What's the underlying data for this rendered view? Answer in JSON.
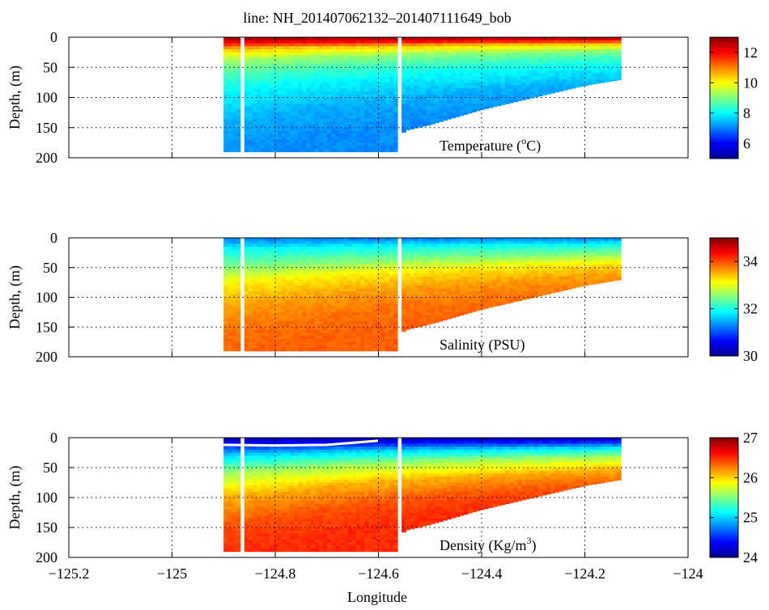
{
  "figure": {
    "title": "line: NH_201407062132–201407111649_bob",
    "xlabel": "Longitude",
    "xticks": [
      -125.2,
      -125,
      -124.8,
      -124.6,
      -124.4,
      -124.2,
      -124
    ],
    "xtick_labels": [
      "−125.2",
      "−125",
      "−124.8",
      "−124.6",
      "−124.4",
      "−124.2",
      "−124"
    ]
  },
  "chart_data": [
    {
      "type": "heatmap",
      "name": "temperature",
      "annotation": "Temperature (°C)",
      "annotation_base": "Temperature (",
      "annotation_sup": "o",
      "annotation_tail": "C)",
      "xlabel": "Longitude",
      "ylabel": "Depth, (m)",
      "xlim": [
        -125.2,
        -124
      ],
      "ylim": [
        0,
        200
      ],
      "yticks": [
        0,
        50,
        100,
        150,
        200
      ],
      "ytick_labels": [
        "0",
        "50",
        "100",
        "150",
        "200"
      ],
      "colorbar": {
        "range": [
          5,
          13
        ],
        "ticks": [
          6,
          8,
          10,
          12
        ],
        "tick_labels": [
          "6",
          "8",
          "10",
          "12"
        ]
      },
      "grid": true,
      "profile": [
        [
          0,
          12.8
        ],
        [
          10,
          12
        ],
        [
          20,
          10.5
        ],
        [
          40,
          9.2
        ],
        [
          60,
          8.6
        ],
        [
          90,
          8
        ],
        [
          140,
          7.4
        ],
        [
          200,
          7.1
        ]
      ]
    },
    {
      "type": "heatmap",
      "name": "salinity",
      "annotation": "Salinity (PSU)",
      "xlabel": "Longitude",
      "ylabel": "Depth, (m)",
      "xlim": [
        -125.2,
        -124
      ],
      "ylim": [
        0,
        200
      ],
      "yticks": [
        0,
        50,
        100,
        150,
        200
      ],
      "ytick_labels": [
        "0",
        "50",
        "100",
        "150",
        "200"
      ],
      "colorbar": {
        "range": [
          30,
          35
        ],
        "ticks": [
          30,
          32,
          34
        ],
        "tick_labels": [
          "30",
          "32",
          "34"
        ]
      },
      "grid": true,
      "profile": [
        [
          0,
          31.2
        ],
        [
          20,
          31.9
        ],
        [
          50,
          32.5
        ],
        [
          80,
          33.2
        ],
        [
          120,
          33.6
        ],
        [
          160,
          33.8
        ],
        [
          200,
          33.9
        ]
      ]
    },
    {
      "type": "heatmap",
      "name": "density",
      "annotation": "Density (Kg/m³)",
      "annotation_base": "Density (Kg/m",
      "annotation_sup": "3",
      "annotation_tail": ")",
      "xlabel": "Longitude",
      "ylabel": "Depth, (m)",
      "xlim": [
        -125.2,
        -124
      ],
      "ylim": [
        0,
        200
      ],
      "yticks": [
        0,
        50,
        100,
        150,
        200
      ],
      "ytick_labels": [
        "0",
        "50",
        "100",
        "150",
        "200"
      ],
      "colorbar": {
        "range": [
          24,
          27
        ],
        "ticks": [
          24,
          25,
          26,
          27
        ],
        "tick_labels": [
          "24",
          "25",
          "26",
          "27"
        ]
      },
      "grid": true,
      "profile": [
        [
          0,
          24.1
        ],
        [
          15,
          24.5
        ],
        [
          30,
          25
        ],
        [
          60,
          25.6
        ],
        [
          100,
          26.1
        ],
        [
          150,
          26.4
        ],
        [
          200,
          26.5
        ]
      ],
      "mixed_layer_depth": [
        [
          -124.9,
          12
        ],
        [
          -124.8,
          13
        ],
        [
          -124.7,
          12
        ],
        [
          -124.6,
          5
        ]
      ]
    }
  ],
  "section": {
    "west_edge_lon": -124.9,
    "east_edge_lon": -124.13,
    "bottom_depth": [
      [
        -124.9,
        190
      ],
      [
        -124.565,
        190
      ],
      [
        -124.55,
        155
      ],
      [
        -124.5,
        145
      ],
      [
        -124.4,
        120
      ],
      [
        -124.3,
        100
      ],
      [
        -124.2,
        80
      ],
      [
        -124.13,
        70
      ]
    ],
    "gap_lons": [
      -124.865,
      -124.56
    ]
  }
}
